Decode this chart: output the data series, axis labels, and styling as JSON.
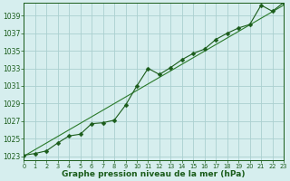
{
  "xlabel": "Graphe pression niveau de la mer (hPa)",
  "background_color": "#d6eeee",
  "grid_color": "#aad0d0",
  "line_color": "#1a5c1a",
  "trend_color": "#2a7a2a",
  "x_values": [
    0,
    1,
    2,
    3,
    4,
    5,
    6,
    7,
    8,
    9,
    10,
    11,
    12,
    13,
    14,
    15,
    16,
    17,
    18,
    19,
    20,
    21,
    22,
    23
  ],
  "y_values": [
    1023.1,
    1023.3,
    1023.6,
    1024.5,
    1025.3,
    1025.5,
    1026.7,
    1026.8,
    1027.1,
    1028.8,
    1031.0,
    1033.0,
    1032.3,
    1033.1,
    1034.0,
    1034.7,
    1035.2,
    1036.3,
    1037.0,
    1037.6,
    1038.0,
    1040.2,
    1039.5,
    1040.5
  ],
  "trend_y0": 1023.0,
  "trend_y1": 1040.2,
  "ylim": [
    1022.5,
    1040.5
  ],
  "xlim": [
    0,
    23
  ],
  "yticks": [
    1023,
    1025,
    1027,
    1029,
    1031,
    1033,
    1035,
    1037,
    1039
  ],
  "xticks": [
    0,
    1,
    2,
    3,
    4,
    5,
    6,
    7,
    8,
    9,
    10,
    11,
    12,
    13,
    14,
    15,
    16,
    17,
    18,
    19,
    20,
    21,
    22,
    23
  ],
  "xlabel_fontsize": 6.5,
  "ytick_fontsize": 5.5,
  "xtick_fontsize": 4.8,
  "marker_size": 2.5
}
